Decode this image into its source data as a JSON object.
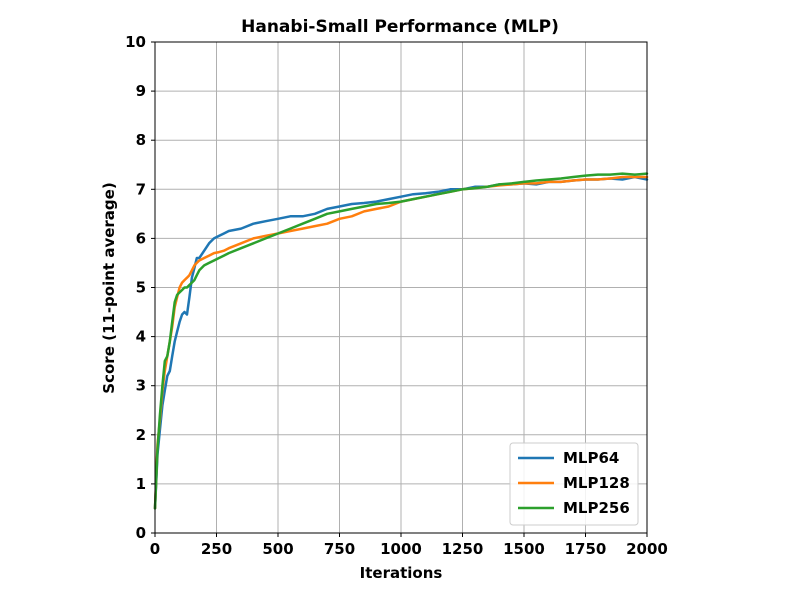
{
  "chart_data": {
    "type": "line",
    "title": "Hanabi-Small Performance (MLP)",
    "xlabel": "Iterations",
    "ylabel": "Score (11-point average)",
    "xlim": [
      0,
      2000
    ],
    "ylim": [
      0,
      10
    ],
    "xticks": [
      0,
      250,
      500,
      750,
      1000,
      1250,
      1500,
      1750,
      2000
    ],
    "yticks": [
      0,
      1,
      2,
      3,
      4,
      5,
      6,
      7,
      8,
      9,
      10
    ],
    "grid": true,
    "legend_position": "lower-right",
    "series": [
      {
        "name": "MLP64",
        "color": "#1f77b4",
        "x": [
          0,
          10,
          20,
          30,
          40,
          50,
          60,
          70,
          80,
          90,
          100,
          110,
          120,
          130,
          140,
          150,
          160,
          170,
          180,
          200,
          220,
          240,
          260,
          280,
          300,
          350,
          400,
          450,
          500,
          550,
          600,
          650,
          700,
          750,
          800,
          850,
          900,
          950,
          1000,
          1050,
          1100,
          1150,
          1200,
          1250,
          1300,
          1350,
          1400,
          1450,
          1500,
          1550,
          1600,
          1650,
          1700,
          1750,
          1800,
          1850,
          1900,
          1950,
          2000
        ],
        "y": [
          0.5,
          1.6,
          2.1,
          2.6,
          2.9,
          3.2,
          3.3,
          3.6,
          3.9,
          4.1,
          4.3,
          4.45,
          4.5,
          4.45,
          4.8,
          5.2,
          5.4,
          5.6,
          5.6,
          5.75,
          5.9,
          6.0,
          6.05,
          6.1,
          6.15,
          6.2,
          6.3,
          6.35,
          6.4,
          6.45,
          6.45,
          6.5,
          6.6,
          6.65,
          6.7,
          6.72,
          6.75,
          6.8,
          6.85,
          6.9,
          6.92,
          6.95,
          7.0,
          7.0,
          7.05,
          7.05,
          7.1,
          7.1,
          7.12,
          7.1,
          7.15,
          7.15,
          7.18,
          7.2,
          7.2,
          7.22,
          7.2,
          7.25,
          7.2
        ]
      },
      {
        "name": "MLP128",
        "color": "#ff7f0e",
        "x": [
          0,
          10,
          20,
          30,
          40,
          50,
          60,
          70,
          80,
          90,
          100,
          110,
          120,
          130,
          140,
          150,
          160,
          170,
          180,
          200,
          220,
          240,
          260,
          280,
          300,
          350,
          400,
          450,
          500,
          550,
          600,
          650,
          700,
          750,
          800,
          850,
          900,
          950,
          1000,
          1050,
          1100,
          1150,
          1200,
          1250,
          1300,
          1350,
          1400,
          1450,
          1500,
          1550,
          1600,
          1650,
          1700,
          1750,
          1800,
          1850,
          1900,
          1950,
          2000
        ],
        "y": [
          0.5,
          1.8,
          2.3,
          2.9,
          3.3,
          3.6,
          3.9,
          4.2,
          4.6,
          4.8,
          5.0,
          5.1,
          5.15,
          5.2,
          5.25,
          5.35,
          5.45,
          5.5,
          5.55,
          5.6,
          5.65,
          5.7,
          5.72,
          5.75,
          5.8,
          5.9,
          6.0,
          6.05,
          6.1,
          6.15,
          6.2,
          6.25,
          6.3,
          6.4,
          6.45,
          6.55,
          6.6,
          6.65,
          6.75,
          6.8,
          6.85,
          6.9,
          6.95,
          7.0,
          7.02,
          7.05,
          7.08,
          7.1,
          7.12,
          7.12,
          7.15,
          7.15,
          7.18,
          7.2,
          7.2,
          7.22,
          7.25,
          7.25,
          7.25
        ]
      },
      {
        "name": "MLP256",
        "color": "#2ca02c",
        "x": [
          0,
          10,
          20,
          30,
          40,
          50,
          60,
          70,
          80,
          90,
          100,
          110,
          120,
          130,
          140,
          150,
          160,
          170,
          180,
          200,
          220,
          240,
          260,
          280,
          300,
          350,
          400,
          450,
          500,
          550,
          600,
          650,
          700,
          750,
          800,
          850,
          900,
          950,
          1000,
          1050,
          1100,
          1150,
          1200,
          1250,
          1300,
          1350,
          1400,
          1450,
          1500,
          1550,
          1600,
          1650,
          1700,
          1750,
          1800,
          1850,
          1900,
          1950,
          2000
        ],
        "y": [
          0.5,
          1.7,
          2.4,
          3.0,
          3.5,
          3.6,
          3.9,
          4.3,
          4.7,
          4.85,
          4.9,
          4.95,
          5.0,
          5.0,
          5.05,
          5.1,
          5.15,
          5.25,
          5.35,
          5.45,
          5.5,
          5.55,
          5.6,
          5.65,
          5.7,
          5.8,
          5.9,
          6.0,
          6.1,
          6.2,
          6.3,
          6.4,
          6.5,
          6.55,
          6.6,
          6.65,
          6.7,
          6.72,
          6.75,
          6.8,
          6.85,
          6.9,
          6.95,
          7.0,
          7.02,
          7.05,
          7.1,
          7.12,
          7.15,
          7.18,
          7.2,
          7.22,
          7.25,
          7.28,
          7.3,
          7.3,
          7.32,
          7.3,
          7.32
        ]
      }
    ]
  }
}
